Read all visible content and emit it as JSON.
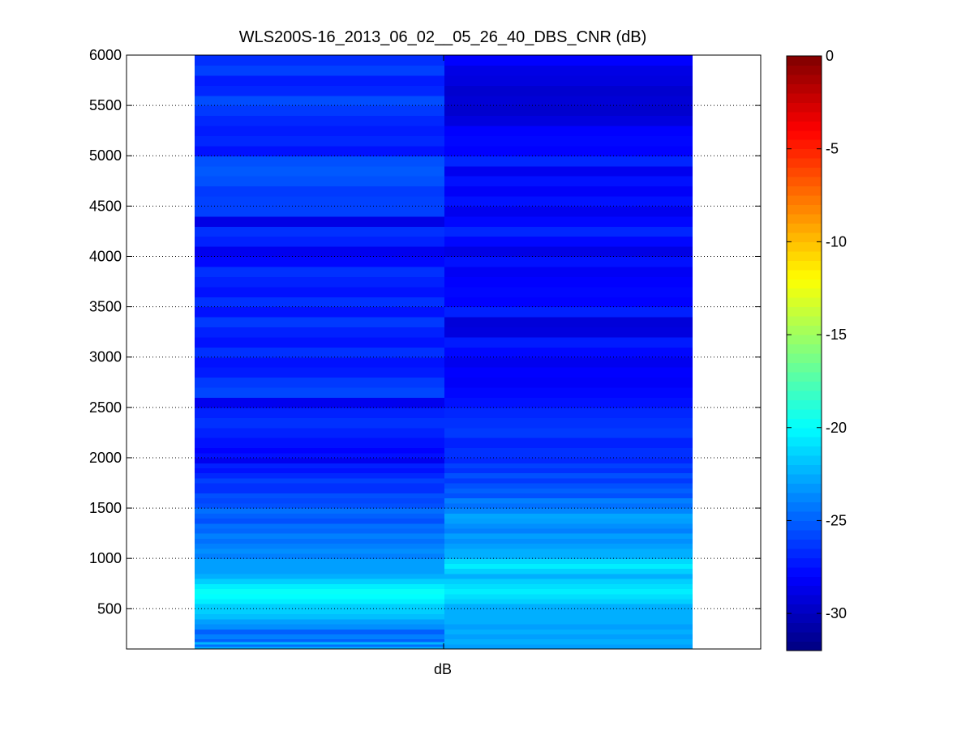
{
  "chart_data": {
    "type": "heatmap",
    "title": "WLS200S-16_2013_06_02__05_26_40_DBS_CNR (dB)",
    "xlabel": "dB",
    "ylabel": "",
    "ylim": [
      100,
      6000
    ],
    "yticks": [
      500,
      1000,
      1500,
      2000,
      2500,
      3000,
      3500,
      4000,
      4500,
      5000,
      5500,
      6000
    ],
    "grid": "y-dotted",
    "colormap": "jet",
    "clim": [
      -32,
      0
    ],
    "colorbar": {
      "placement": "right",
      "ticks": [
        0,
        -5,
        -10,
        -15,
        -20,
        -25,
        -30
      ]
    },
    "columns": [
      {
        "bins": [
          [
            100,
            125,
            -22.5
          ],
          [
            125,
            150,
            -24.5
          ],
          [
            150,
            175,
            -22.3
          ],
          [
            175,
            200,
            -25.0
          ],
          [
            200,
            250,
            -24.0
          ],
          [
            250,
            300,
            -25.0
          ],
          [
            300,
            350,
            -23.5
          ],
          [
            350,
            400,
            -23.0
          ],
          [
            400,
            450,
            -22.0
          ],
          [
            450,
            500,
            -21.5
          ],
          [
            500,
            550,
            -21.5
          ],
          [
            550,
            600,
            -20.5
          ],
          [
            600,
            650,
            -20.0
          ],
          [
            650,
            700,
            -19.8
          ],
          [
            700,
            750,
            -20.5
          ],
          [
            750,
            800,
            -21.5
          ],
          [
            800,
            850,
            -22.5
          ],
          [
            850,
            900,
            -23.0
          ],
          [
            900,
            950,
            -23.0
          ],
          [
            950,
            1000,
            -23.0
          ],
          [
            1000,
            1050,
            -24.0
          ],
          [
            1050,
            1100,
            -23.5
          ],
          [
            1100,
            1150,
            -24.0
          ],
          [
            1150,
            1200,
            -24.5
          ],
          [
            1200,
            1250,
            -24.0
          ],
          [
            1250,
            1300,
            -24.8
          ],
          [
            1300,
            1350,
            -24.5
          ],
          [
            1350,
            1400,
            -25.5
          ],
          [
            1400,
            1450,
            -25.0
          ],
          [
            1450,
            1500,
            -24.5
          ],
          [
            1500,
            1550,
            -25.5
          ],
          [
            1550,
            1600,
            -25.8
          ],
          [
            1600,
            1650,
            -25.5
          ],
          [
            1650,
            1700,
            -26.5
          ],
          [
            1700,
            1750,
            -26.5
          ],
          [
            1750,
            1800,
            -26.0
          ],
          [
            1800,
            1850,
            -26.8
          ],
          [
            1850,
            1900,
            -27.5
          ],
          [
            1900,
            1950,
            -27.0
          ],
          [
            1950,
            2000,
            -28.5
          ],
          [
            2000,
            2050,
            -27.5
          ],
          [
            2050,
            2100,
            -28.0
          ],
          [
            2100,
            2200,
            -27.5
          ],
          [
            2200,
            2300,
            -27.0
          ],
          [
            2300,
            2400,
            -26.5
          ],
          [
            2400,
            2500,
            -27.0
          ],
          [
            2500,
            2600,
            -28.5
          ],
          [
            2600,
            2700,
            -25.8
          ],
          [
            2700,
            2800,
            -26.2
          ],
          [
            2800,
            2900,
            -27.2
          ],
          [
            2900,
            3000,
            -27.5
          ],
          [
            3000,
            3100,
            -26.5
          ],
          [
            3100,
            3200,
            -27.5
          ],
          [
            3200,
            3300,
            -27.0
          ],
          [
            3300,
            3400,
            -26.2
          ],
          [
            3400,
            3500,
            -27.5
          ],
          [
            3500,
            3600,
            -26.5
          ],
          [
            3600,
            3700,
            -27.5
          ],
          [
            3700,
            3800,
            -27.0
          ],
          [
            3800,
            3900,
            -26.5
          ],
          [
            3900,
            4000,
            -27.8
          ],
          [
            4000,
            4100,
            -28.5
          ],
          [
            4100,
            4200,
            -27.0
          ],
          [
            4200,
            4300,
            -26.5
          ],
          [
            4300,
            4400,
            -28.8
          ],
          [
            4400,
            4600,
            -26.0
          ],
          [
            4600,
            4700,
            -26.2
          ],
          [
            4700,
            4800,
            -25.5
          ],
          [
            4800,
            4900,
            -25.2
          ],
          [
            4900,
            5000,
            -25.5
          ],
          [
            5000,
            5100,
            -27.5
          ],
          [
            5100,
            5200,
            -26.8
          ],
          [
            5200,
            5300,
            -27.2
          ],
          [
            5300,
            5400,
            -26.8
          ],
          [
            5400,
            5500,
            -26.2
          ],
          [
            5500,
            5600,
            -25.6
          ],
          [
            5600,
            5700,
            -26.8
          ],
          [
            5700,
            5800,
            -27.2
          ],
          [
            5800,
            5900,
            -26.0
          ],
          [
            5900,
            6000,
            -26.6
          ]
        ]
      },
      {
        "bins": [
          [
            100,
            150,
            -23.0
          ],
          [
            150,
            200,
            -22.5
          ],
          [
            200,
            250,
            -23.0
          ],
          [
            250,
            300,
            -22.5
          ],
          [
            300,
            350,
            -23.0
          ],
          [
            350,
            400,
            -22.5
          ],
          [
            400,
            450,
            -22.5
          ],
          [
            450,
            500,
            -22.5
          ],
          [
            500,
            550,
            -22.5
          ],
          [
            550,
            600,
            -21.5
          ],
          [
            600,
            650,
            -21.0
          ],
          [
            650,
            700,
            -20.5
          ],
          [
            700,
            750,
            -21.0
          ],
          [
            750,
            800,
            -21.5
          ],
          [
            800,
            850,
            -22.5
          ],
          [
            850,
            900,
            -21.5
          ],
          [
            900,
            950,
            -20.5
          ],
          [
            950,
            1000,
            -21.2
          ],
          [
            1000,
            1050,
            -22.5
          ],
          [
            1050,
            1100,
            -22.5
          ],
          [
            1100,
            1150,
            -23.0
          ],
          [
            1150,
            1200,
            -23.5
          ],
          [
            1200,
            1250,
            -23.0
          ],
          [
            1250,
            1300,
            -24.0
          ],
          [
            1300,
            1350,
            -23.5
          ],
          [
            1350,
            1400,
            -23.0
          ],
          [
            1400,
            1450,
            -22.8
          ],
          [
            1450,
            1500,
            -23.8
          ],
          [
            1500,
            1550,
            -24.5
          ],
          [
            1550,
            1600,
            -24.0
          ],
          [
            1600,
            1650,
            -25.5
          ],
          [
            1650,
            1700,
            -25.0
          ],
          [
            1700,
            1750,
            -25.5
          ],
          [
            1750,
            1800,
            -26.2
          ],
          [
            1800,
            1850,
            -25.5
          ],
          [
            1850,
            1900,
            -26.5
          ],
          [
            1900,
            1950,
            -26.0
          ],
          [
            1950,
            2000,
            -26.8
          ],
          [
            2000,
            2100,
            -26.5
          ],
          [
            2100,
            2200,
            -27.0
          ],
          [
            2200,
            2300,
            -26.2
          ],
          [
            2300,
            2400,
            -26.5
          ],
          [
            2400,
            2500,
            -26.8
          ],
          [
            2500,
            2600,
            -27.5
          ],
          [
            2600,
            2700,
            -27.8
          ],
          [
            2700,
            2800,
            -28.2
          ],
          [
            2800,
            2900,
            -28.0
          ],
          [
            2900,
            3000,
            -28.5
          ],
          [
            3000,
            3100,
            -27.8
          ],
          [
            3100,
            3200,
            -27.2
          ],
          [
            3200,
            3300,
            -29.0
          ],
          [
            3300,
            3400,
            -29.2
          ],
          [
            3400,
            3500,
            -27.0
          ],
          [
            3500,
            3600,
            -28.0
          ],
          [
            3600,
            3700,
            -27.8
          ],
          [
            3700,
            3800,
            -28.0
          ],
          [
            3800,
            3900,
            -28.3
          ],
          [
            3900,
            4000,
            -27.5
          ],
          [
            4000,
            4100,
            -28.8
          ],
          [
            4100,
            4200,
            -27.8
          ],
          [
            4200,
            4300,
            -26.8
          ],
          [
            4300,
            4400,
            -27.8
          ],
          [
            4400,
            4500,
            -28.5
          ],
          [
            4500,
            4600,
            -27.5
          ],
          [
            4600,
            4700,
            -28.2
          ],
          [
            4700,
            4800,
            -27.5
          ],
          [
            4800,
            4900,
            -28.5
          ],
          [
            4900,
            5000,
            -26.8
          ],
          [
            5000,
            5100,
            -28.0
          ],
          [
            5100,
            5200,
            -27.8
          ],
          [
            5200,
            5300,
            -28.0
          ],
          [
            5300,
            5400,
            -29.0
          ],
          [
            5400,
            5500,
            -29.5
          ],
          [
            5500,
            5600,
            -29.3
          ],
          [
            5600,
            5700,
            -29.5
          ],
          [
            5700,
            5800,
            -29.0
          ],
          [
            5800,
            5900,
            -28.8
          ],
          [
            5900,
            6000,
            -28.0
          ]
        ]
      }
    ]
  }
}
